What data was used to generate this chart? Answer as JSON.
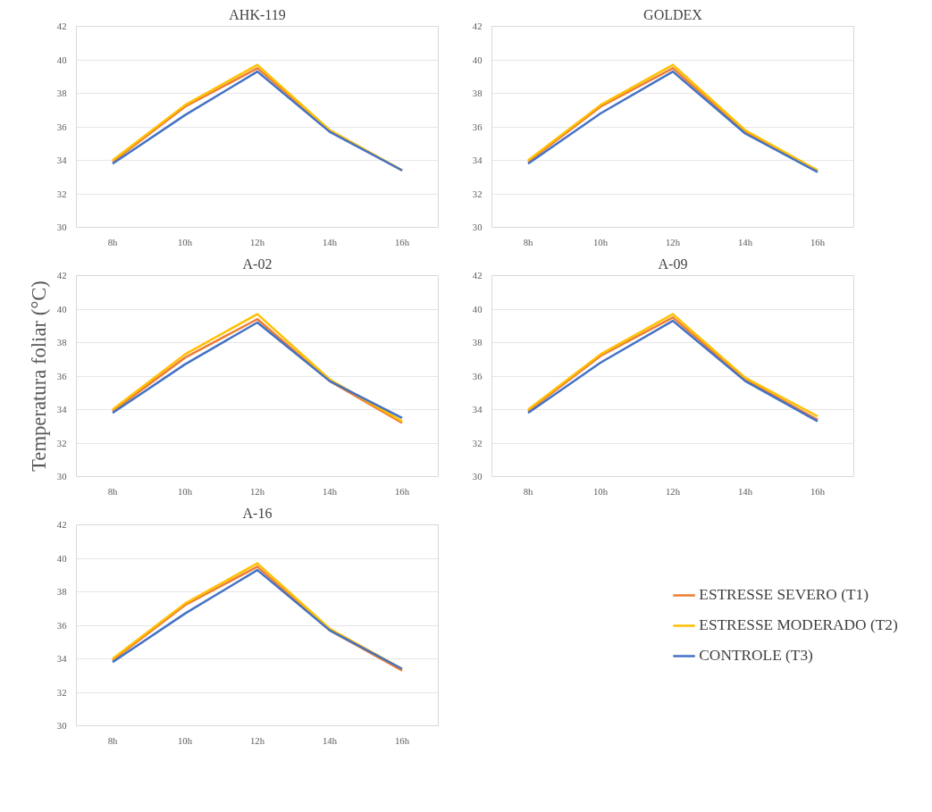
{
  "chart_data": [
    {
      "type": "line",
      "title": "AHK-119",
      "categories": [
        "8h",
        "10h",
        "12h",
        "14h",
        "16h"
      ],
      "ylim": [
        30,
        42
      ],
      "yticks": [
        30,
        32,
        34,
        36,
        38,
        40,
        42
      ],
      "grid": "y",
      "series": [
        {
          "color": "#ed7d31",
          "values": [
            33.9,
            37.2,
            39.5,
            35.8,
            33.4
          ]
        },
        {
          "color": "#ffc000",
          "values": [
            34.0,
            37.3,
            39.7,
            35.8,
            33.4
          ]
        },
        {
          "color": "#4472c4",
          "values": [
            33.8,
            36.7,
            39.3,
            35.7,
            33.4
          ]
        }
      ]
    },
    {
      "type": "line",
      "title": "GOLDEX",
      "categories": [
        "8h",
        "10h",
        "12h",
        "14h",
        "16h"
      ],
      "ylim": [
        30,
        42
      ],
      "yticks": [
        30,
        32,
        34,
        36,
        38,
        40,
        42
      ],
      "grid": "y",
      "series": [
        {
          "color": "#ed7d31",
          "values": [
            33.9,
            37.2,
            39.5,
            35.7,
            33.4
          ]
        },
        {
          "color": "#ffc000",
          "values": [
            34.0,
            37.3,
            39.7,
            35.8,
            33.4
          ]
        },
        {
          "color": "#4472c4",
          "values": [
            33.8,
            36.8,
            39.3,
            35.6,
            33.3
          ]
        }
      ]
    },
    {
      "type": "line",
      "title": "A-02",
      "ylabel": "Temperatura foliar (°C)",
      "categories": [
        "8h",
        "10h",
        "12h",
        "14h",
        "16h"
      ],
      "ylim": [
        30,
        42
      ],
      "yticks": [
        30,
        32,
        34,
        36,
        38,
        40,
        42
      ],
      "grid": "y",
      "series": [
        {
          "color": "#ed7d31",
          "values": [
            33.9,
            37.1,
            39.4,
            35.7,
            33.2
          ]
        },
        {
          "color": "#ffc000",
          "values": [
            34.0,
            37.3,
            39.7,
            35.8,
            33.3
          ]
        },
        {
          "color": "#4472c4",
          "values": [
            33.8,
            36.7,
            39.2,
            35.7,
            33.5
          ]
        }
      ]
    },
    {
      "type": "line",
      "title": "A-09",
      "categories": [
        "8h",
        "10h",
        "12h",
        "14h",
        "16h"
      ],
      "ylim": [
        30,
        42
      ],
      "yticks": [
        30,
        32,
        34,
        36,
        38,
        40,
        42
      ],
      "grid": "y",
      "series": [
        {
          "color": "#ed7d31",
          "values": [
            33.9,
            37.2,
            39.5,
            35.8,
            33.4
          ]
        },
        {
          "color": "#ffc000",
          "values": [
            34.0,
            37.3,
            39.7,
            35.9,
            33.6
          ]
        },
        {
          "color": "#4472c4",
          "values": [
            33.8,
            36.8,
            39.3,
            35.7,
            33.3
          ]
        }
      ]
    },
    {
      "type": "line",
      "title": "A-16",
      "legend": "right",
      "categories": [
        "8h",
        "10h",
        "12h",
        "14h",
        "16h"
      ],
      "ylim": [
        30,
        42
      ],
      "yticks": [
        30,
        32,
        34,
        36,
        38,
        40,
        42
      ],
      "grid": "y",
      "series": [
        {
          "name": "ESTRESSE SEVERO (T1)",
          "color": "#ed7d31",
          "values": [
            33.9,
            37.2,
            39.5,
            35.7,
            33.3
          ]
        },
        {
          "name": "ESTRESSE MODERADO (T2)",
          "color": "#ffc000",
          "values": [
            34.0,
            37.3,
            39.7,
            35.8,
            33.4
          ]
        },
        {
          "name": "CONTROLE (T3)",
          "color": "#4472c4",
          "values": [
            33.8,
            36.7,
            39.3,
            35.7,
            33.4
          ]
        }
      ]
    }
  ]
}
